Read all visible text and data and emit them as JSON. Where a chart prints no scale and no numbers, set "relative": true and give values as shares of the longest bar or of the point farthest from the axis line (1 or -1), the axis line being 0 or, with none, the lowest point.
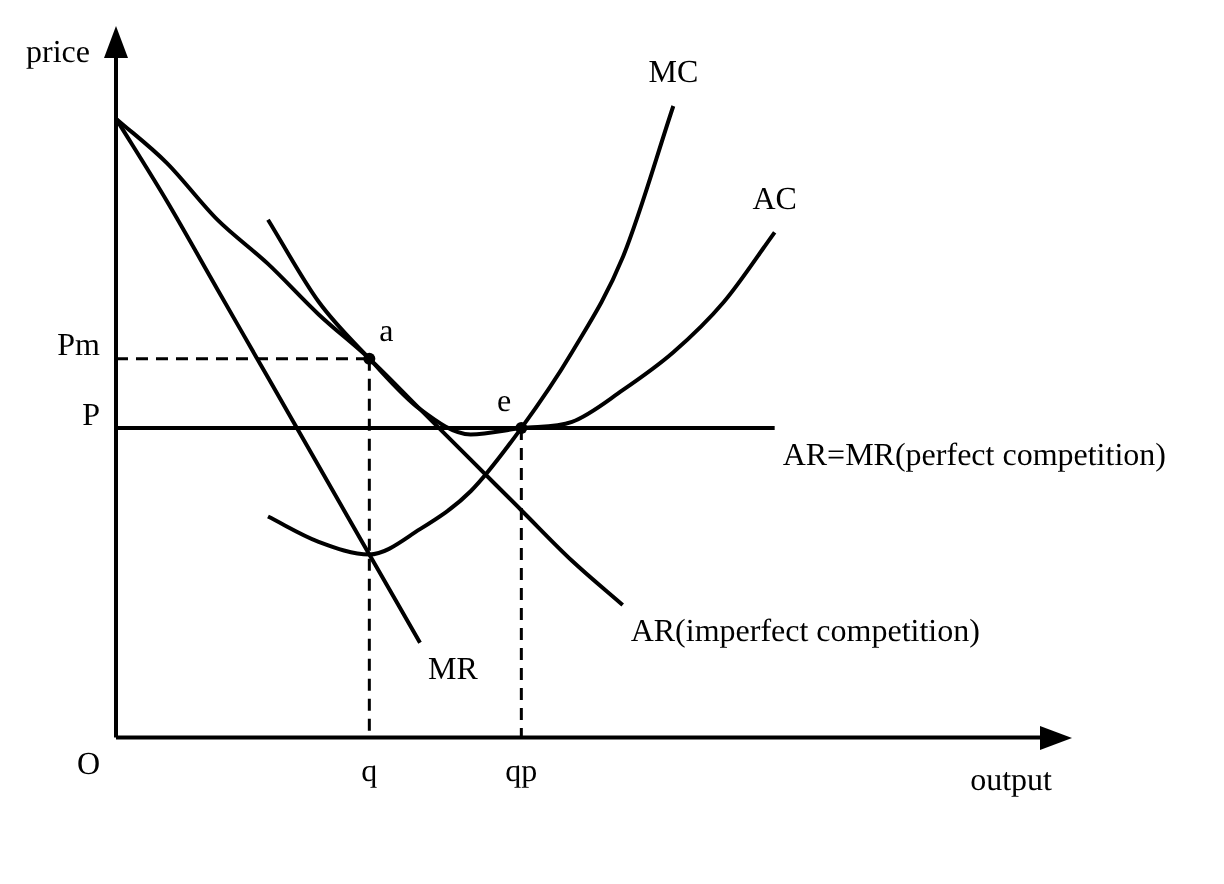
{
  "chart_data": {
    "type": "line",
    "relative": true,
    "xlabel": "output",
    "ylabel": "price",
    "legend": false,
    "grid": false,
    "marker": "none",
    "line_style": "solid",
    "categories": [
      null,
      null,
      null,
      null,
      null,
      "q",
      null,
      null,
      "qp",
      null,
      null,
      null,
      null,
      null,
      null,
      null,
      null,
      null,
      null
    ],
    "series": [
      {
        "name": "MC",
        "color": "#000000",
        "values": [
          null,
          null,
          null,
          0.35,
          0.31,
          0.29,
          0.33,
          0.39,
          0.49,
          0.61,
          0.76,
          1.0,
          null,
          null,
          null,
          null,
          null,
          null,
          null
        ]
      },
      {
        "name": "AC",
        "color": "#000000",
        "values": [
          null,
          null,
          null,
          0.82,
          0.69,
          0.6,
          0.52,
          0.48,
          0.49,
          0.5,
          0.55,
          0.61,
          0.69,
          0.8,
          null,
          null,
          null,
          null,
          null
        ]
      },
      {
        "name": "AR=MR(perfect competition)",
        "color": "#000000",
        "values": [
          null,
          null,
          null,
          null,
          null,
          null,
          null,
          null,
          0.49,
          0.49,
          0.49,
          0.49,
          0.49,
          0.49,
          null,
          null,
          null,
          null,
          null
        ]
      },
      {
        "name": "AR(imperfect competition)",
        "color": "#000000",
        "values": [
          0.98,
          0.91,
          0.82,
          0.75,
          0.67,
          0.6,
          0.52,
          0.44,
          0.36,
          0.28,
          0.21,
          null,
          null,
          null,
          null,
          null,
          null,
          null,
          null
        ]
      },
      {
        "name": "MR",
        "color": "#000000",
        "values": [
          0.98,
          0.85,
          0.71,
          0.57,
          0.43,
          0.29,
          0.15,
          null,
          null,
          null,
          null,
          null,
          null,
          null,
          null,
          null,
          null,
          null,
          null
        ]
      }
    ],
    "ref_lines": [
      {
        "axis": "y",
        "value": 0.6,
        "label": "Pm",
        "line_style": "dashed"
      },
      {
        "axis": "y",
        "value": 0.49,
        "label": "P",
        "line_style": "solid"
      }
    ],
    "annotations": [
      "O",
      {
        "text": "a",
        "x": "q",
        "y": 0.6
      },
      {
        "text": "e",
        "x": "qp",
        "y": 0.49
      }
    ]
  }
}
